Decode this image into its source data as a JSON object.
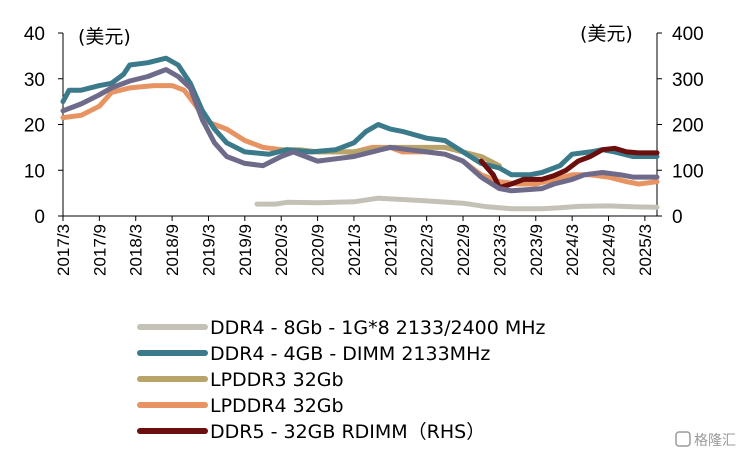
{
  "chart_data": {
    "type": "line",
    "unit_left": "(美元)",
    "unit_right": "(美元)",
    "y_left": {
      "min": 0,
      "max": 40,
      "ticks": [
        0,
        10,
        20,
        30,
        40
      ]
    },
    "y_right": {
      "min": 0,
      "max": 400,
      "ticks": [
        0,
        100,
        200,
        300,
        400
      ]
    },
    "x_ticks": [
      "2017/3",
      "2017/9",
      "2018/3",
      "2018/9",
      "2019/3",
      "2019/9",
      "2020/3",
      "2020/9",
      "2021/3",
      "2021/9",
      "2022/3",
      "2022/9",
      "2023/3",
      "2023/9",
      "2024/3",
      "2024/9",
      "2025/3"
    ],
    "x_range": [
      "2017/3",
      "2025/5"
    ],
    "grid": false,
    "legend_position": "bottom",
    "series": [
      {
        "name": "DDR4 - 8Gb - 1G*8 2133/2400 MHz",
        "color": "#c4c2b6",
        "axis": "left",
        "points": [
          [
            "2019/11",
            2.6
          ],
          [
            "2020/2",
            2.6
          ],
          [
            "2020/4",
            3.0
          ],
          [
            "2020/9",
            2.9
          ],
          [
            "2021/3",
            3.1
          ],
          [
            "2021/7",
            3.9
          ],
          [
            "2021/11",
            3.6
          ],
          [
            "2022/3",
            3.3
          ],
          [
            "2022/9",
            2.8
          ],
          [
            "2023/1",
            2.0
          ],
          [
            "2023/5",
            1.6
          ],
          [
            "2023/10",
            1.6
          ],
          [
            "2024/1",
            1.8
          ],
          [
            "2024/4",
            2.1
          ],
          [
            "2024/9",
            2.2
          ],
          [
            "2025/1",
            2.0
          ],
          [
            "2025/5",
            1.9
          ]
        ]
      },
      {
        "name": "DDR4 - 4GB - DIMM 2133MHz",
        "color": "#3a7a8a",
        "axis": "left",
        "points": [
          [
            "2017/3",
            25
          ],
          [
            "2017/4",
            27.5
          ],
          [
            "2017/6",
            27.5
          ],
          [
            "2017/9",
            28.5
          ],
          [
            "2017/11",
            29
          ],
          [
            "2018/1",
            31
          ],
          [
            "2018/2",
            33
          ],
          [
            "2018/5",
            33.5
          ],
          [
            "2018/8",
            34.5
          ],
          [
            "2018/10",
            33
          ],
          [
            "2018/12",
            29
          ],
          [
            "2019/2",
            23
          ],
          [
            "2019/4",
            19
          ],
          [
            "2019/6",
            16
          ],
          [
            "2019/9",
            14
          ],
          [
            "2020/1",
            13.5
          ],
          [
            "2020/4",
            14.5
          ],
          [
            "2020/8",
            14
          ],
          [
            "2020/12",
            14.5
          ],
          [
            "2021/3",
            16
          ],
          [
            "2021/5",
            18.5
          ],
          [
            "2021/7",
            20
          ],
          [
            "2021/9",
            19
          ],
          [
            "2021/11",
            18.5
          ],
          [
            "2022/3",
            17
          ],
          [
            "2022/6",
            16.5
          ],
          [
            "2022/9",
            14
          ],
          [
            "2022/12",
            11.5
          ],
          [
            "2023/3",
            10.5
          ],
          [
            "2023/5",
            9
          ],
          [
            "2023/8",
            9
          ],
          [
            "2023/10",
            9.5
          ],
          [
            "2024/1",
            11
          ],
          [
            "2024/3",
            13.5
          ],
          [
            "2024/6",
            14
          ],
          [
            "2024/8",
            14.5
          ],
          [
            "2024/10",
            14
          ],
          [
            "2025/1",
            13
          ],
          [
            "2025/3",
            13
          ],
          [
            "2025/5",
            13
          ]
        ]
      },
      {
        "name": "LPDDR3 32Gb",
        "color": "#b8a469",
        "axis": "left",
        "points": [
          [
            "2020/3",
            14.5
          ],
          [
            "2020/6",
            14.5
          ],
          [
            "2020/9",
            14
          ],
          [
            "2021/3",
            14
          ],
          [
            "2021/6",
            14.5
          ],
          [
            "2021/9",
            15
          ],
          [
            "2022/3",
            15
          ],
          [
            "2022/6",
            15
          ],
          [
            "2022/9",
            14
          ],
          [
            "2022/12",
            13
          ],
          [
            "2023/3",
            11
          ]
        ]
      },
      {
        "name": "LPDDR4 32Gb",
        "color": "#e89462",
        "axis": "left",
        "points": [
          [
            "2017/3",
            21.5
          ],
          [
            "2017/6",
            22
          ],
          [
            "2017/9",
            24
          ],
          [
            "2017/11",
            27
          ],
          [
            "2018/2",
            28
          ],
          [
            "2018/6",
            28.5
          ],
          [
            "2018/9",
            28.5
          ],
          [
            "2018/11",
            27.5
          ],
          [
            "2019/1",
            24
          ],
          [
            "2019/3",
            20.5
          ],
          [
            "2019/6",
            19
          ],
          [
            "2019/9",
            16.5
          ],
          [
            "2019/12",
            15
          ],
          [
            "2020/3",
            14.5
          ],
          [
            "2020/6",
            14
          ],
          [
            "2020/9",
            14
          ],
          [
            "2021/3",
            14
          ],
          [
            "2021/6",
            15
          ],
          [
            "2021/9",
            15
          ],
          [
            "2021/11",
            14
          ],
          [
            "2022/3",
            14
          ],
          [
            "2022/6",
            13.5
          ],
          [
            "2022/9",
            12
          ],
          [
            "2022/12",
            9
          ],
          [
            "2023/3",
            7.5
          ],
          [
            "2023/6",
            7
          ],
          [
            "2023/9",
            7
          ],
          [
            "2023/12",
            8
          ],
          [
            "2024/3",
            9
          ],
          [
            "2024/6",
            9
          ],
          [
            "2024/9",
            8.5
          ],
          [
            "2024/12",
            7.5
          ],
          [
            "2025/2",
            7
          ],
          [
            "2025/5",
            7.5
          ]
        ]
      },
      {
        "name": "DDR5 - 32GB RDIMM（RHS）",
        "color": "#6b0e0e",
        "axis": "right",
        "points": [
          [
            "2022/12",
            120
          ],
          [
            "2023/2",
            90
          ],
          [
            "2023/3",
            62
          ],
          [
            "2023/5",
            70
          ],
          [
            "2023/7",
            80
          ],
          [
            "2023/10",
            80
          ],
          [
            "2023/12",
            88
          ],
          [
            "2024/2",
            100
          ],
          [
            "2024/4",
            120
          ],
          [
            "2024/6",
            130
          ],
          [
            "2024/8",
            145
          ],
          [
            "2024/10",
            148
          ],
          [
            "2024/12",
            140
          ],
          [
            "2025/2",
            138
          ],
          [
            "2025/5",
            138
          ]
        ]
      },
      {
        "name": "",
        "color": "#6e6a8a",
        "axis": "left",
        "points": [
          [
            "2017/3",
            23
          ],
          [
            "2017/6",
            24.5
          ],
          [
            "2017/9",
            26.5
          ],
          [
            "2017/11",
            28
          ],
          [
            "2018/2",
            29.5
          ],
          [
            "2018/5",
            30.5
          ],
          [
            "2018/8",
            32
          ],
          [
            "2018/10",
            30.5
          ],
          [
            "2018/12",
            28
          ],
          [
            "2019/2",
            21
          ],
          [
            "2019/4",
            16
          ],
          [
            "2019/6",
            13
          ],
          [
            "2019/9",
            11.5
          ],
          [
            "2019/12",
            11
          ],
          [
            "2020/3",
            13
          ],
          [
            "2020/5",
            14
          ],
          [
            "2020/7",
            13
          ],
          [
            "2020/9",
            12
          ],
          [
            "2020/12",
            12.5
          ],
          [
            "2021/3",
            13
          ],
          [
            "2021/6",
            14
          ],
          [
            "2021/9",
            15
          ],
          [
            "2021/12",
            14.5
          ],
          [
            "2022/3",
            14
          ],
          [
            "2022/6",
            13.5
          ],
          [
            "2022/9",
            12
          ],
          [
            "2022/12",
            8.5
          ],
          [
            "2023/3",
            6
          ],
          [
            "2023/5",
            5.5
          ],
          [
            "2023/8",
            5.8
          ],
          [
            "2023/10",
            6
          ],
          [
            "2023/12",
            7
          ],
          [
            "2024/3",
            8
          ],
          [
            "2024/5",
            9
          ],
          [
            "2024/8",
            9.5
          ],
          [
            "2024/11",
            9
          ],
          [
            "2025/1",
            8.5
          ],
          [
            "2025/3",
            8.5
          ],
          [
            "2025/5",
            8.5
          ]
        ]
      }
    ]
  },
  "watermark": "格隆汇"
}
